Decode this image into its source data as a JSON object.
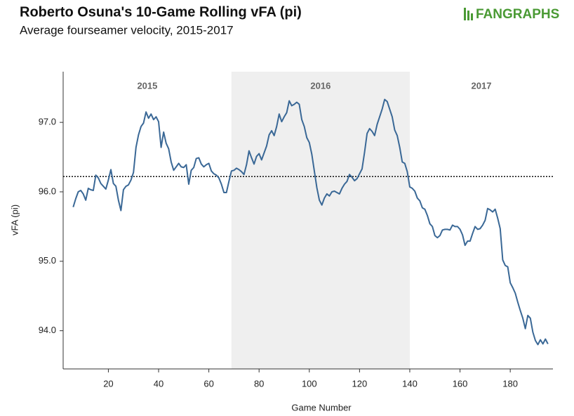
{
  "chart_data": {
    "type": "line",
    "title": "Roberto Osuna's 10-Game Rolling vFA (pi)",
    "subtitle": "Average fourseamer velocity, 2015-2017",
    "logo": "FANGRAPHS",
    "x_label": "Game Number",
    "y_label": "vFA (pi)",
    "xlim": [
      2,
      197
    ],
    "ylim": [
      93.45,
      97.73
    ],
    "xticks": [
      20,
      40,
      60,
      80,
      100,
      120,
      140,
      160,
      180
    ],
    "yticks": [
      {
        "value": 94,
        "label": "94.0"
      },
      {
        "value": 95,
        "label": "95.0"
      },
      {
        "value": 96,
        "label": "96.0"
      },
      {
        "value": 97,
        "label": "97.0"
      }
    ],
    "periods": [
      {
        "label": "2015",
        "range": [
          2,
          69
        ],
        "shaded": false
      },
      {
        "label": "2016",
        "range": [
          69,
          140
        ],
        "shaded": true
      },
      {
        "label": "2017",
        "range": [
          140,
          197
        ],
        "shaded": false
      }
    ],
    "reference_line": 96.22,
    "x": [
      6,
      7,
      8,
      9,
      10,
      11,
      12,
      13,
      14,
      15,
      16,
      17,
      18,
      19,
      20,
      21,
      22,
      23,
      24,
      25,
      26,
      27,
      28,
      29,
      30,
      31,
      32,
      33,
      34,
      35,
      36,
      37,
      38,
      39,
      40,
      41,
      42,
      43,
      44,
      45,
      46,
      47,
      48,
      49,
      50,
      51,
      52,
      53,
      54,
      55,
      56,
      57,
      58,
      59,
      60,
      61,
      62,
      63,
      64,
      65,
      66,
      67,
      68,
      69,
      70,
      71,
      72,
      73,
      74,
      75,
      76,
      77,
      78,
      79,
      80,
      81,
      82,
      83,
      84,
      85,
      86,
      87,
      88,
      89,
      90,
      91,
      92,
      93,
      94,
      95,
      96,
      97,
      98,
      99,
      100,
      101,
      102,
      103,
      104,
      105,
      106,
      107,
      108,
      109,
      110,
      111,
      112,
      113,
      114,
      115,
      116,
      117,
      118,
      119,
      120,
      121,
      122,
      123,
      124,
      125,
      126,
      127,
      128,
      129,
      130,
      131,
      132,
      133,
      134,
      135,
      136,
      137,
      138,
      139,
      140,
      141,
      142,
      143,
      144,
      145,
      146,
      147,
      148,
      149,
      150,
      151,
      152,
      153,
      154,
      155,
      156,
      157,
      158,
      159,
      160,
      161,
      162,
      163,
      164,
      165,
      166,
      167,
      168,
      169,
      170,
      171,
      172,
      173,
      174,
      175,
      176,
      177,
      178,
      179,
      180,
      181,
      182,
      183,
      184,
      185,
      186,
      187,
      188,
      189,
      190,
      191,
      192,
      193,
      194,
      195
    ],
    "series": [
      {
        "name": "vFA (pi)",
        "color": "#3a6896",
        "values": [
          95.78,
          95.9,
          96.0,
          96.02,
          95.97,
          95.88,
          96.05,
          96.03,
          96.02,
          96.24,
          96.2,
          96.12,
          96.08,
          96.04,
          96.17,
          96.32,
          96.12,
          96.08,
          95.88,
          95.73,
          96.03,
          96.08,
          96.1,
          96.17,
          96.28,
          96.64,
          96.82,
          96.94,
          96.99,
          97.15,
          97.06,
          97.12,
          97.04,
          97.08,
          97.01,
          96.64,
          96.86,
          96.7,
          96.62,
          96.43,
          96.31,
          96.36,
          96.41,
          96.36,
          96.35,
          96.39,
          96.11,
          96.31,
          96.35,
          96.48,
          96.49,
          96.4,
          96.36,
          96.39,
          96.41,
          96.3,
          96.26,
          96.24,
          96.2,
          96.11,
          95.99,
          95.99,
          96.15,
          96.3,
          96.31,
          96.34,
          96.32,
          96.29,
          96.25,
          96.39,
          96.59,
          96.49,
          96.4,
          96.51,
          96.55,
          96.46,
          96.56,
          96.66,
          96.82,
          96.88,
          96.81,
          96.94,
          97.12,
          97.01,
          97.08,
          97.14,
          97.31,
          97.24,
          97.26,
          97.29,
          97.26,
          97.04,
          96.94,
          96.78,
          96.71,
          96.54,
          96.3,
          96.06,
          95.88,
          95.81,
          95.91,
          95.97,
          95.94,
          96.0,
          96.01,
          95.99,
          95.97,
          96.05,
          96.11,
          96.15,
          96.25,
          96.21,
          96.16,
          96.19,
          96.26,
          96.33,
          96.57,
          96.84,
          96.91,
          96.87,
          96.81,
          96.97,
          97.08,
          97.19,
          97.33,
          97.3,
          97.19,
          97.08,
          96.89,
          96.81,
          96.64,
          96.43,
          96.41,
          96.29,
          96.07,
          96.05,
          96.01,
          95.91,
          95.87,
          95.77,
          95.75,
          95.66,
          95.54,
          95.5,
          95.37,
          95.34,
          95.37,
          95.45,
          95.46,
          95.46,
          95.45,
          95.52,
          95.5,
          95.5,
          95.46,
          95.38,
          95.23,
          95.29,
          95.29,
          95.4,
          95.5,
          95.46,
          95.47,
          95.52,
          95.59,
          95.76,
          95.74,
          95.71,
          95.75,
          95.62,
          95.47,
          95.02,
          94.94,
          94.92,
          94.69,
          94.62,
          94.54,
          94.41,
          94.29,
          94.18,
          94.03,
          94.22,
          94.18,
          93.98,
          93.86,
          93.8,
          93.87,
          93.81,
          93.88,
          93.81
        ]
      }
    ]
  }
}
